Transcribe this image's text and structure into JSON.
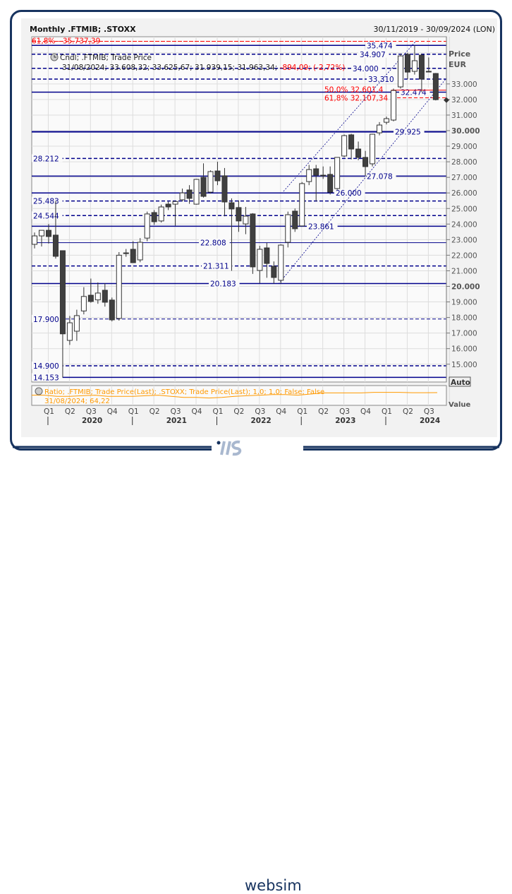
{
  "header": {
    "title": "Monthly .FTMIB; .STOXX",
    "date_range": "30/11/2019 - 30/09/2024 (LON)"
  },
  "legend": {
    "series_label": "Cndl; .FTMIB; Trade Price",
    "values_text": "31/08/2024; 33.608,32; 33.625,67; 31.939,15; 31.963,34;",
    "change_text": "-894,09; (-2,72%)"
  },
  "price_axis": {
    "label_line1": "Price",
    "label_line2": "EUR",
    "auto_button": "Auto",
    "value_label": "Value"
  },
  "ratio_pane": {
    "legend": "Ratio; .FTMIB; Trade Price(Last); .STOXX; Trade Price(Last);  1,0; 1,0; False; False",
    "value_text": "31/08/2024; 64,22"
  },
  "footer": {
    "brand": "websim"
  },
  "colors": {
    "level": "#00008b",
    "fib": "#ff0000",
    "ratio": "#ff9900",
    "candle_dark": "#404040",
    "frame": "#17335f"
  },
  "chart_data": {
    "type": "candlestick",
    "title": "Monthly .FTMIB; .STOXX",
    "ylim": [
      13900,
      36000
    ],
    "yticks": [
      15000,
      16000,
      17000,
      18000,
      19000,
      20000,
      21000,
      22000,
      23000,
      24000,
      25000,
      26000,
      27000,
      28000,
      29000,
      30000,
      31000,
      32000,
      33000
    ],
    "ytick_labels": [
      "15.000",
      "16.000",
      "17.000",
      "18.000",
      "19.000",
      "20.000",
      "21.000",
      "22.000",
      "23.000",
      "24.000",
      "25.000",
      "26.000",
      "27.000",
      "28.000",
      "29.000",
      "30.000",
      "31.000",
      "32.000",
      "33.000"
    ],
    "grid": true,
    "x_quarters": [
      "Q1",
      "Q2",
      "Q3",
      "Q4",
      "Q1",
      "Q2",
      "Q3",
      "Q4",
      "Q1",
      "Q2",
      "Q3",
      "Q4",
      "Q1",
      "Q2",
      "Q3",
      "Q4",
      "Q1",
      "Q2",
      "Q3"
    ],
    "x_years": [
      "2020",
      "2021",
      "2022",
      "2023",
      "2024"
    ],
    "candles": [
      [
        22700,
        23460,
        22440,
        23240
      ],
      [
        23240,
        23550,
        22560,
        23600
      ],
      [
        23600,
        24000,
        22750,
        23200
      ],
      [
        23290,
        25483,
        21780,
        21930
      ],
      [
        22290,
        22300,
        14153,
        16950
      ],
      [
        16530,
        18100,
        16240,
        17660
      ],
      [
        17120,
        18500,
        16500,
        18120
      ],
      [
        18420,
        19950,
        18200,
        19350
      ],
      [
        19430,
        20500,
        18950,
        19030
      ],
      [
        19130,
        20250,
        18880,
        19570
      ],
      [
        19750,
        20200,
        18700,
        18980
      ],
      [
        19120,
        19280,
        17750,
        17850
      ],
      [
        17940,
        22200,
        17800,
        22000
      ],
      [
        22150,
        22400,
        21900,
        22150
      ],
      [
        22380,
        22900,
        21500,
        21520
      ],
      [
        21700,
        23100,
        21550,
        22830
      ],
      [
        23100,
        24800,
        22900,
        24650
      ],
      [
        24740,
        24900,
        23950,
        24150
      ],
      [
        24200,
        25250,
        24100,
        25100
      ],
      [
        25280,
        25450,
        24900,
        25100
      ],
      [
        25280,
        25480,
        23900,
        25450
      ],
      [
        25560,
        26280,
        25450,
        26000
      ],
      [
        26190,
        26500,
        25300,
        25650
      ],
      [
        25280,
        26900,
        25250,
        26870
      ],
      [
        27000,
        27900,
        25700,
        25780
      ],
      [
        26050,
        27450,
        25960,
        27370
      ],
      [
        27410,
        28000,
        26500,
        26780
      ],
      [
        27100,
        27600,
        24500,
        25420
      ],
      [
        25370,
        25650,
        21000,
        24970
      ],
      [
        25060,
        25520,
        23500,
        24200
      ],
      [
        24010,
        25100,
        23350,
        24510
      ],
      [
        24650,
        24700,
        20800,
        21250
      ],
      [
        21020,
        22600,
        20200,
        22380
      ],
      [
        22470,
        22800,
        20550,
        21470
      ],
      [
        21290,
        21600,
        20183,
        20570
      ],
      [
        20390,
        22700,
        20183,
        22650
      ],
      [
        22830,
        24800,
        22500,
        24600
      ],
      [
        24830,
        25000,
        23500,
        23700
      ],
      [
        23880,
        26700,
        23861,
        26600
      ],
      [
        26730,
        27800,
        26500,
        27500
      ],
      [
        27550,
        27800,
        25450,
        27140
      ],
      [
        27140,
        27700,
        26900,
        27140
      ],
      [
        27190,
        27700,
        25900,
        26050
      ],
      [
        26280,
        28300,
        26200,
        28280
      ],
      [
        28370,
        29750,
        28300,
        29680
      ],
      [
        29730,
        29800,
        28150,
        28820
      ],
      [
        28820,
        29300,
        28100,
        28280
      ],
      [
        28280,
        28700,
        27078,
        27690
      ],
      [
        27870,
        29800,
        27700,
        29770
      ],
      [
        29860,
        30550,
        29700,
        30360
      ],
      [
        30540,
        30900,
        30400,
        30770
      ],
      [
        30680,
        32700,
        30600,
        32580
      ],
      [
        32810,
        34950,
        32700,
        34800
      ],
      [
        34900,
        35000,
        33300,
        33760
      ],
      [
        33810,
        35474,
        33600,
        34490
      ],
      [
        34850,
        34950,
        32474,
        33310
      ],
      [
        33810,
        34700,
        33810,
        33810
      ],
      [
        33670,
        33700,
        31940,
        31990
      ]
    ],
    "levels": [
      {
        "value": 35474,
        "label": "35.474",
        "style": "solid"
      },
      {
        "value": 34907,
        "label": "34.907",
        "style": "dashed"
      },
      {
        "value": 34000,
        "label": "34.000",
        "style": "dashed"
      },
      {
        "value": 33310,
        "label": "33.310",
        "style": "dashed"
      },
      {
        "value": 32474,
        "label": "32.474",
        "style": "solid"
      },
      {
        "value": 29925,
        "label": "29.925",
        "style": "thick"
      },
      {
        "value": 28212,
        "label": "28.212",
        "style": "dashed"
      },
      {
        "value": 27078,
        "label": "27.078",
        "style": "solid"
      },
      {
        "value": 26000,
        "label": "26.000",
        "style": "solid"
      },
      {
        "value": 25483,
        "label": "25.483",
        "style": "dashed"
      },
      {
        "value": 24544,
        "label": "24.544",
        "style": "dashed"
      },
      {
        "value": 23861,
        "label": "23.861",
        "style": "solid"
      },
      {
        "value": 22808,
        "label": "22.808",
        "style": "thin"
      },
      {
        "value": 21311,
        "label": "21.311",
        "style": "dashed"
      },
      {
        "value": 20183,
        "label": "20.183",
        "style": "solid"
      },
      {
        "value": 17900,
        "label": "17.900",
        "style": "thindash"
      },
      {
        "value": 14900,
        "label": "14.900",
        "style": "dashed"
      },
      {
        "value": 14153,
        "label": "14.153",
        "style": "solid"
      }
    ],
    "fib_levels": [
      {
        "value": 35737.39,
        "label": "61,8% - 35.737,39"
      },
      {
        "value": 32601.4,
        "label": "50,0% 32.601,4"
      },
      {
        "value": 32107.34,
        "label": "61,8% 32.107,34"
      }
    ],
    "last_price_marker": 31963.34,
    "ratio_series": [
      62,
      62,
      61,
      61,
      61.5,
      62,
      61,
      61,
      61,
      61.5,
      62,
      61,
      60,
      60,
      59.5,
      60,
      61,
      61.5,
      62,
      62.5,
      62.5,
      62,
      63,
      64,
      64,
      64,
      64,
      64.5,
      64.5,
      64.5,
      64.2,
      64.2,
      64.22
    ]
  }
}
